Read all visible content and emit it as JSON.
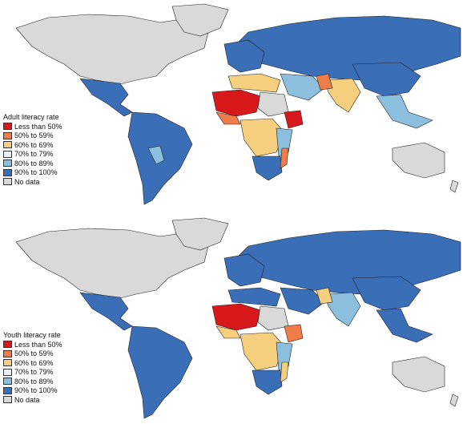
{
  "categories": [
    {
      "label": "Less than 50%",
      "color": "#d7191c"
    },
    {
      "label": "50% to 59%",
      "color": "#f07c4a"
    },
    {
      "label": "60% to 69%",
      "color": "#f5cf7d"
    },
    {
      "label": "70% to 79%",
      "color": "#e8f1f5"
    },
    {
      "label": "80% to 89%",
      "color": "#8cbfde"
    },
    {
      "label": "90% to 100%",
      "color": "#3a6fb8"
    },
    {
      "label": "No data",
      "color": "#d9d9d9"
    }
  ],
  "maps": [
    {
      "id": "adult",
      "legend_title": "Adult literacy rate"
    },
    {
      "id": "youth",
      "legend_title": "Youth literacy rate"
    }
  ]
}
